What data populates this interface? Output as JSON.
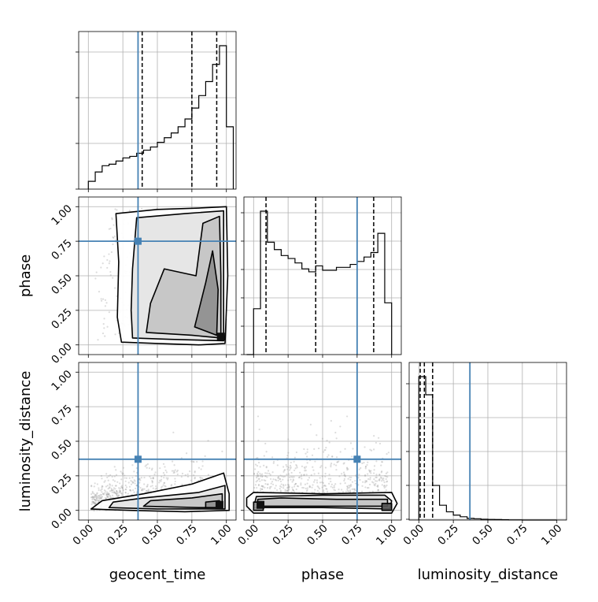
{
  "chart_data": {
    "type": "corner",
    "parameters": [
      "geocent_time",
      "phase",
      "luminosity_distance"
    ],
    "range": [
      -0.07,
      1.07
    ],
    "ticks": [
      0.0,
      0.25,
      0.5,
      0.75,
      1.0
    ],
    "tick_labels": [
      "0.00",
      "0.25",
      "0.50",
      "0.75",
      "1.00"
    ],
    "truths": [
      0.36,
      0.75,
      0.37
    ],
    "truth_color": "#4682b4",
    "grid": true,
    "histograms": [
      {
        "parameter": "geocent_time",
        "bin_edges": [
          0.0,
          0.05,
          0.1,
          0.15,
          0.2,
          0.25,
          0.3,
          0.35,
          0.4,
          0.45,
          0.5,
          0.55,
          0.6,
          0.65,
          0.7,
          0.75,
          0.8,
          0.85,
          0.9,
          0.95,
          1.0,
          1.05
        ],
        "counts": [
          0.05,
          0.11,
          0.15,
          0.16,
          0.18,
          0.2,
          0.21,
          0.23,
          0.25,
          0.27,
          0.3,
          0.33,
          0.36,
          0.4,
          0.45,
          0.52,
          0.6,
          0.69,
          0.8,
          0.92,
          0.4
        ],
        "quantile_lines": [
          0.39,
          0.75,
          0.93
        ]
      },
      {
        "parameter": "phase",
        "bin_edges": [
          -0.05,
          0.0,
          0.05,
          0.1,
          0.15,
          0.2,
          0.25,
          0.3,
          0.35,
          0.4,
          0.45,
          0.5,
          0.55,
          0.6,
          0.65,
          0.7,
          0.75,
          0.8,
          0.85,
          0.9,
          0.95,
          1.0
        ],
        "counts": [
          0.0,
          0.31,
          0.97,
          0.76,
          0.71,
          0.67,
          0.65,
          0.62,
          0.58,
          0.56,
          0.6,
          0.57,
          0.57,
          0.59,
          0.59,
          0.61,
          0.63,
          0.66,
          0.69,
          0.82,
          0.35
        ],
        "quantile_lines": [
          0.09,
          0.45,
          0.87
        ]
      },
      {
        "parameter": "luminosity_distance",
        "bin_edges": [
          0.0,
          0.05,
          0.1,
          0.15,
          0.2,
          0.25,
          0.3,
          0.35,
          0.4,
          0.45,
          0.5,
          0.55,
          0.6,
          0.65,
          0.7,
          0.75,
          0.8,
          0.85,
          0.9,
          0.95,
          1.0
        ],
        "counts": [
          0.87,
          0.76,
          0.21,
          0.09,
          0.05,
          0.03,
          0.02,
          0.01,
          0.008,
          0.005,
          0.004,
          0.003,
          0.002,
          0.001,
          0.001,
          0.0,
          0.0,
          0.0,
          0.0,
          0.0
        ],
        "quantile_lines": [
          0.01,
          0.04,
          0.1
        ]
      }
    ],
    "pairs": [
      {
        "x": "geocent_time",
        "y": "phase",
        "density_centers": [
          [
            0.96,
            0.06
          ],
          [
            0.92,
            0.55
          ],
          [
            0.55,
            0.5
          ]
        ],
        "contours": [
          [
            [
              0.24,
              0.02
            ],
            [
              0.5,
              0.01
            ],
            [
              0.8,
              0.0
            ],
            [
              0.99,
              0.01
            ],
            [
              1.01,
              0.5
            ],
            [
              1.0,
              1.0
            ],
            [
              0.8,
              0.99
            ],
            [
              0.5,
              0.98
            ],
            [
              0.2,
              0.95
            ],
            [
              0.22,
              0.6
            ],
            [
              0.21,
              0.2
            ]
          ],
          [
            [
              0.32,
              0.05
            ],
            [
              0.6,
              0.04
            ],
            [
              0.98,
              0.03
            ],
            [
              0.98,
              0.5
            ],
            [
              0.98,
              0.97
            ],
            [
              0.7,
              0.95
            ],
            [
              0.35,
              0.92
            ],
            [
              0.32,
              0.55
            ],
            [
              0.31,
              0.25
            ]
          ],
          [
            [
              0.42,
              0.09
            ],
            [
              0.75,
              0.07
            ],
            [
              0.96,
              0.05
            ],
            [
              0.96,
              0.5
            ],
            [
              0.95,
              0.93
            ],
            [
              0.83,
              0.88
            ],
            [
              0.78,
              0.5
            ],
            [
              0.55,
              0.55
            ],
            [
              0.45,
              0.3
            ]
          ],
          [
            [
              0.77,
              0.13
            ],
            [
              0.93,
              0.07
            ],
            [
              0.94,
              0.4
            ],
            [
              0.9,
              0.68
            ],
            [
              0.85,
              0.45
            ]
          ]
        ]
      },
      {
        "x": "geocent_time",
        "y": "luminosity_distance",
        "density_centers": [
          [
            0.95,
            0.04
          ],
          [
            0.7,
            0.07
          ]
        ],
        "contours": [
          [
            [
              0.02,
              0.01
            ],
            [
              0.3,
              0.0
            ],
            [
              0.7,
              -0.01
            ],
            [
              1.02,
              0.0
            ],
            [
              1.02,
              0.12
            ],
            [
              0.98,
              0.27
            ],
            [
              0.75,
              0.19
            ],
            [
              0.4,
              0.12
            ],
            [
              0.1,
              0.07
            ]
          ],
          [
            [
              0.15,
              0.02
            ],
            [
              0.5,
              0.01
            ],
            [
              0.99,
              0.01
            ],
            [
              0.99,
              0.18
            ],
            [
              0.8,
              0.13
            ],
            [
              0.4,
              0.09
            ],
            [
              0.18,
              0.06
            ]
          ],
          [
            [
              0.4,
              0.03
            ],
            [
              0.8,
              0.02
            ],
            [
              0.97,
              0.02
            ],
            [
              0.97,
              0.12
            ],
            [
              0.75,
              0.09
            ],
            [
              0.45,
              0.07
            ]
          ],
          [
            [
              0.85,
              0.02
            ],
            [
              0.95,
              0.02
            ],
            [
              0.95,
              0.07
            ],
            [
              0.85,
              0.06
            ]
          ]
        ]
      },
      {
        "x": "phase",
        "y": "luminosity_distance",
        "density_centers": [
          [
            0.05,
            0.04
          ],
          [
            0.95,
            0.04
          ],
          [
            0.5,
            0.06
          ]
        ],
        "contours": [
          [
            [
              -0.05,
              0.03
            ],
            [
              0.0,
              -0.02
            ],
            [
              0.5,
              -0.02
            ],
            [
              1.0,
              -0.02
            ],
            [
              1.04,
              0.05
            ],
            [
              1.0,
              0.13
            ],
            [
              0.5,
              0.12
            ],
            [
              0.0,
              0.13
            ],
            [
              -0.05,
              0.09
            ]
          ],
          [
            [
              0.0,
              0.02
            ],
            [
              0.5,
              0.02
            ],
            [
              0.99,
              0.01
            ],
            [
              1.0,
              0.07
            ],
            [
              0.95,
              0.11
            ],
            [
              0.5,
              0.11
            ],
            [
              0.02,
              0.1
            ]
          ],
          [
            [
              0.03,
              0.03
            ],
            [
              0.3,
              0.03
            ],
            [
              0.97,
              0.03
            ],
            [
              0.97,
              0.08
            ],
            [
              0.6,
              0.08
            ],
            [
              0.2,
              0.09
            ],
            [
              0.03,
              0.08
            ]
          ],
          [
            [
              0.0,
              0.0
            ],
            [
              0.07,
              0.0
            ],
            [
              0.07,
              0.06
            ],
            [
              0.0,
              0.06
            ]
          ],
          [
            [
              0.93,
              0.0
            ],
            [
              1.0,
              0.0
            ],
            [
              1.0,
              0.05
            ],
            [
              0.93,
              0.05
            ]
          ]
        ]
      }
    ]
  }
}
